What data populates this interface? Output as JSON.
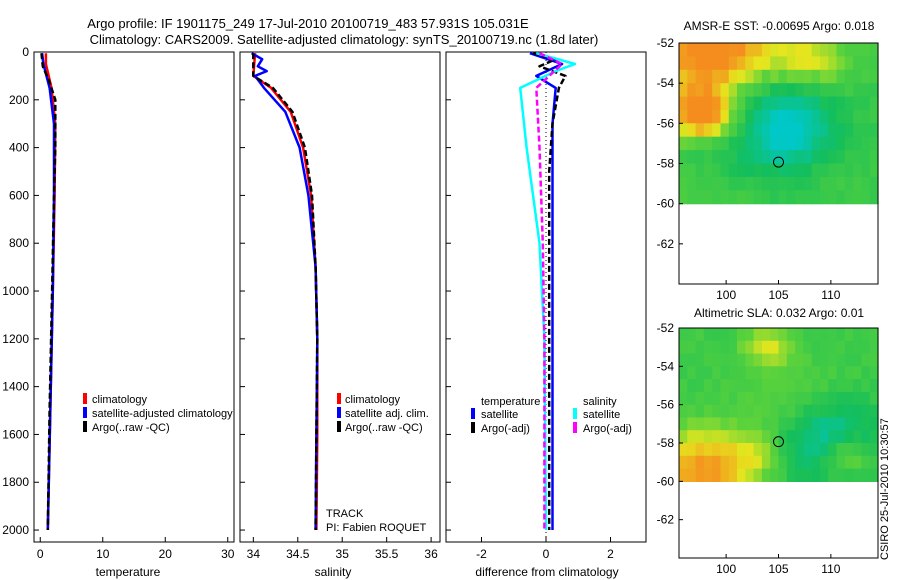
{
  "header": {
    "line1": "Argo profile: IF 1901175_249 17-Jul-2010 20100719_483 57.931S 105.031E",
    "line2": "Climatology: CARS2009. Satellite-adjusted climatology: synTS_20100719.nc (1.8d later)"
  },
  "chart_data": [
    {
      "type": "line",
      "id": "temperature",
      "xlabel": "temperature",
      "xlim": [
        -1,
        31
      ],
      "ylim": [
        2050,
        0
      ],
      "xticks": [
        0,
        10,
        20,
        30
      ],
      "yticks": [
        0,
        200,
        400,
        600,
        800,
        1000,
        1200,
        1400,
        1600,
        1800,
        2000
      ],
      "legend": [
        "climatology",
        "satellite-adjusted climatology",
        "Argo(..raw -QC)"
      ],
      "series": [
        {
          "name": "climatology",
          "color": "#ff0000",
          "dash": "",
          "points": [
            [
              0.9,
              5
            ],
            [
              0.9,
              50
            ],
            [
              1.8,
              150
            ],
            [
              2.4,
              300
            ],
            [
              2.3,
              600
            ],
            [
              2.0,
              1000
            ],
            [
              1.6,
              1500
            ],
            [
              1.2,
              2000
            ]
          ]
        },
        {
          "name": "satellite-adjusted climatology",
          "color": "#0000ff",
          "dash": "",
          "points": [
            [
              0.3,
              5
            ],
            [
              0.5,
              50
            ],
            [
              1.5,
              150
            ],
            [
              2.2,
              300
            ],
            [
              2.2,
              600
            ],
            [
              2.0,
              1000
            ],
            [
              1.6,
              1500
            ],
            [
              1.2,
              2000
            ]
          ]
        },
        {
          "name": "Argo(..raw -QC)",
          "color": "#000000",
          "dash": "6,3",
          "points": [
            [
              0.2,
              5
            ],
            [
              0.4,
              60
            ],
            [
              1.4,
              120
            ],
            [
              2.4,
              200
            ],
            [
              2.4,
              400
            ],
            [
              2.2,
              600
            ],
            [
              1.9,
              1000
            ],
            [
              1.5,
              1500
            ],
            [
              1.2,
              2000
            ]
          ]
        }
      ]
    },
    {
      "type": "line",
      "id": "salinity",
      "xlabel": "salinity",
      "xlim": [
        33.85,
        36.1
      ],
      "ylim": [
        2050,
        0
      ],
      "xticks": [
        34,
        34.5,
        35,
        35.5,
        36
      ],
      "legend": [
        "climatology",
        "satellite adj. clim.",
        "Argo(..raw -QC)"
      ],
      "annotations": [
        "TRACK",
        "PI: Fabien ROQUET"
      ],
      "series": [
        {
          "name": "climatology",
          "color": "#ff0000",
          "dash": "",
          "points": [
            [
              34.02,
              5
            ],
            [
              34.0,
              100
            ],
            [
              34.2,
              150
            ],
            [
              34.42,
              250
            ],
            [
              34.56,
              400
            ],
            [
              34.65,
              600
            ],
            [
              34.7,
              900
            ],
            [
              34.72,
              1200
            ],
            [
              34.72,
              1600
            ],
            [
              34.71,
              2000
            ]
          ]
        },
        {
          "name": "satellite adj. clim.",
          "color": "#0000ff",
          "dash": "",
          "points": [
            [
              33.98,
              5
            ],
            [
              34.1,
              30
            ],
            [
              34.05,
              60
            ],
            [
              34.15,
              80
            ],
            [
              34.02,
              100
            ],
            [
              34.12,
              150
            ],
            [
              34.36,
              250
            ],
            [
              34.52,
              400
            ],
            [
              34.62,
              600
            ],
            [
              34.7,
              900
            ],
            [
              34.72,
              1200
            ],
            [
              34.71,
              1600
            ],
            [
              34.7,
              2000
            ]
          ]
        },
        {
          "name": "Argo(..raw -QC)",
          "color": "#000000",
          "dash": "6,3",
          "points": [
            [
              34.0,
              5
            ],
            [
              34.0,
              100
            ],
            [
              34.22,
              150
            ],
            [
              34.44,
              250
            ],
            [
              34.58,
              400
            ],
            [
              34.66,
              600
            ],
            [
              34.7,
              900
            ],
            [
              34.72,
              1200
            ],
            [
              34.71,
              1600
            ],
            [
              34.7,
              2000
            ]
          ]
        }
      ]
    },
    {
      "type": "line",
      "id": "difference",
      "xlabel": "difference from climatology",
      "xlim": [
        -3.1,
        3.1
      ],
      "ylim": [
        2050,
        0
      ],
      "xticks": [
        -2,
        0,
        2
      ],
      "legend_groups": [
        {
          "title": "temperature",
          "items": [
            "satellite",
            "Argo(-adj)"
          ]
        },
        {
          "title": "salinity",
          "items": [
            "satellite",
            "Argo(-adj)"
          ]
        }
      ],
      "series": [
        {
          "name": "temperature satellite",
          "color": "#0000ff",
          "dash": "",
          "points": [
            [
              -0.5,
              5
            ],
            [
              0.5,
              50
            ],
            [
              -0.3,
              100
            ],
            [
              0.3,
              150
            ],
            [
              0.2,
              300
            ],
            [
              0.2,
              600
            ],
            [
              0.2,
              1000
            ],
            [
              0.2,
              1500
            ],
            [
              0.2,
              2000
            ]
          ]
        },
        {
          "name": "temperature Argo(-adj)",
          "color": "#000000",
          "dash": "6,3",
          "points": [
            [
              -0.4,
              5
            ],
            [
              0.3,
              30
            ],
            [
              -0.2,
              60
            ],
            [
              0.6,
              100
            ],
            [
              0.4,
              150
            ],
            [
              0.2,
              300
            ],
            [
              0.1,
              500
            ],
            [
              0.1,
              1000
            ],
            [
              0.1,
              1500
            ],
            [
              0.1,
              2000
            ]
          ]
        },
        {
          "name": "salinity satellite",
          "color": "#00ffff",
          "dash": "",
          "points": [
            [
              -0.3,
              5
            ],
            [
              0.9,
              50
            ],
            [
              0.3,
              80
            ],
            [
              -0.8,
              150
            ],
            [
              -0.6,
              400
            ],
            [
              -0.2,
              800
            ],
            [
              -0.05,
              1200
            ],
            [
              0,
              2000
            ]
          ]
        },
        {
          "name": "salinity Argo(-adj)",
          "color": "#ff00ff",
          "dash": "6,3",
          "points": [
            [
              -0.2,
              5
            ],
            [
              0.5,
              50
            ],
            [
              -0.3,
              150
            ],
            [
              -0.2,
              400
            ],
            [
              -0.1,
              800
            ],
            [
              -0.05,
              1200
            ],
            [
              -0.05,
              2000
            ]
          ]
        }
      ]
    },
    {
      "type": "heatmap",
      "id": "sst_map",
      "title": "AMSR-E SST: -0.00695 Argo: 0.018",
      "xlim": [
        95.5,
        114.5
      ],
      "ylim": [
        -64,
        -52
      ],
      "xticks": [
        100,
        105,
        110
      ],
      "yticks": [
        -52,
        -54,
        -56,
        -58,
        -60,
        -62
      ],
      "marker": [
        105.0,
        -57.93
      ],
      "data_limit_lat": -60,
      "seed": 7
    },
    {
      "type": "heatmap",
      "id": "sla_map",
      "title": "Altimetric SLA: 0.032 Argo: 0.01",
      "xlim": [
        95.5,
        114.5
      ],
      "ylim": [
        -64,
        -52
      ],
      "xticks": [
        100,
        105,
        110
      ],
      "yticks": [
        -52,
        -54,
        -56,
        -58,
        -60,
        -62
      ],
      "marker": [
        105.0,
        -57.93
      ],
      "data_limit_lat": -60,
      "seed": 23
    }
  ],
  "footer": {
    "stamp": "CSIRO 25-Jul-2010 10:30:57"
  }
}
